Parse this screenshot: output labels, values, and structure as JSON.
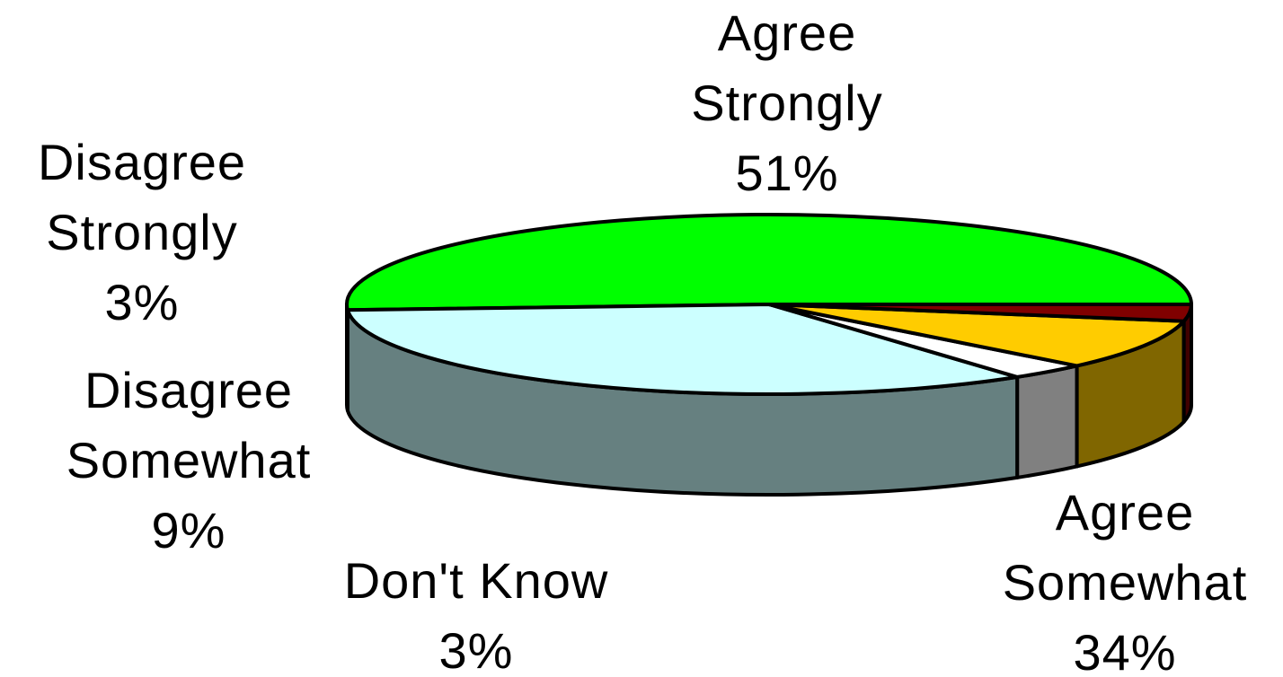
{
  "chart_data": {
    "type": "pie",
    "style": "3d-tilted",
    "slices": [
      {
        "label_lines": [
          "Agree",
          "Strongly"
        ],
        "percent_text": "51%",
        "value": 51,
        "color": "#00ff00",
        "side_color": "#00a000"
      },
      {
        "label_lines": [
          "Agree",
          "Somewhat"
        ],
        "percent_text": "34%",
        "value": 34,
        "color": "#ccffff",
        "side_color": "#668080"
      },
      {
        "label_lines": [
          "Don't Know"
        ],
        "percent_text": "3%",
        "value": 3,
        "color": "#ffffff",
        "side_color": "#808080"
      },
      {
        "label_lines": [
          "Disagree",
          "Somewhat"
        ],
        "percent_text": "9%",
        "value": 9,
        "color": "#ffcc00",
        "side_color": "#806600"
      },
      {
        "label_lines": [
          "Disagree",
          "Strongly"
        ],
        "percent_text": "3%",
        "value": 3,
        "color": "#800000",
        "side_color": "#400000"
      }
    ],
    "outline_color": "#000000",
    "background": "#ffffff"
  }
}
